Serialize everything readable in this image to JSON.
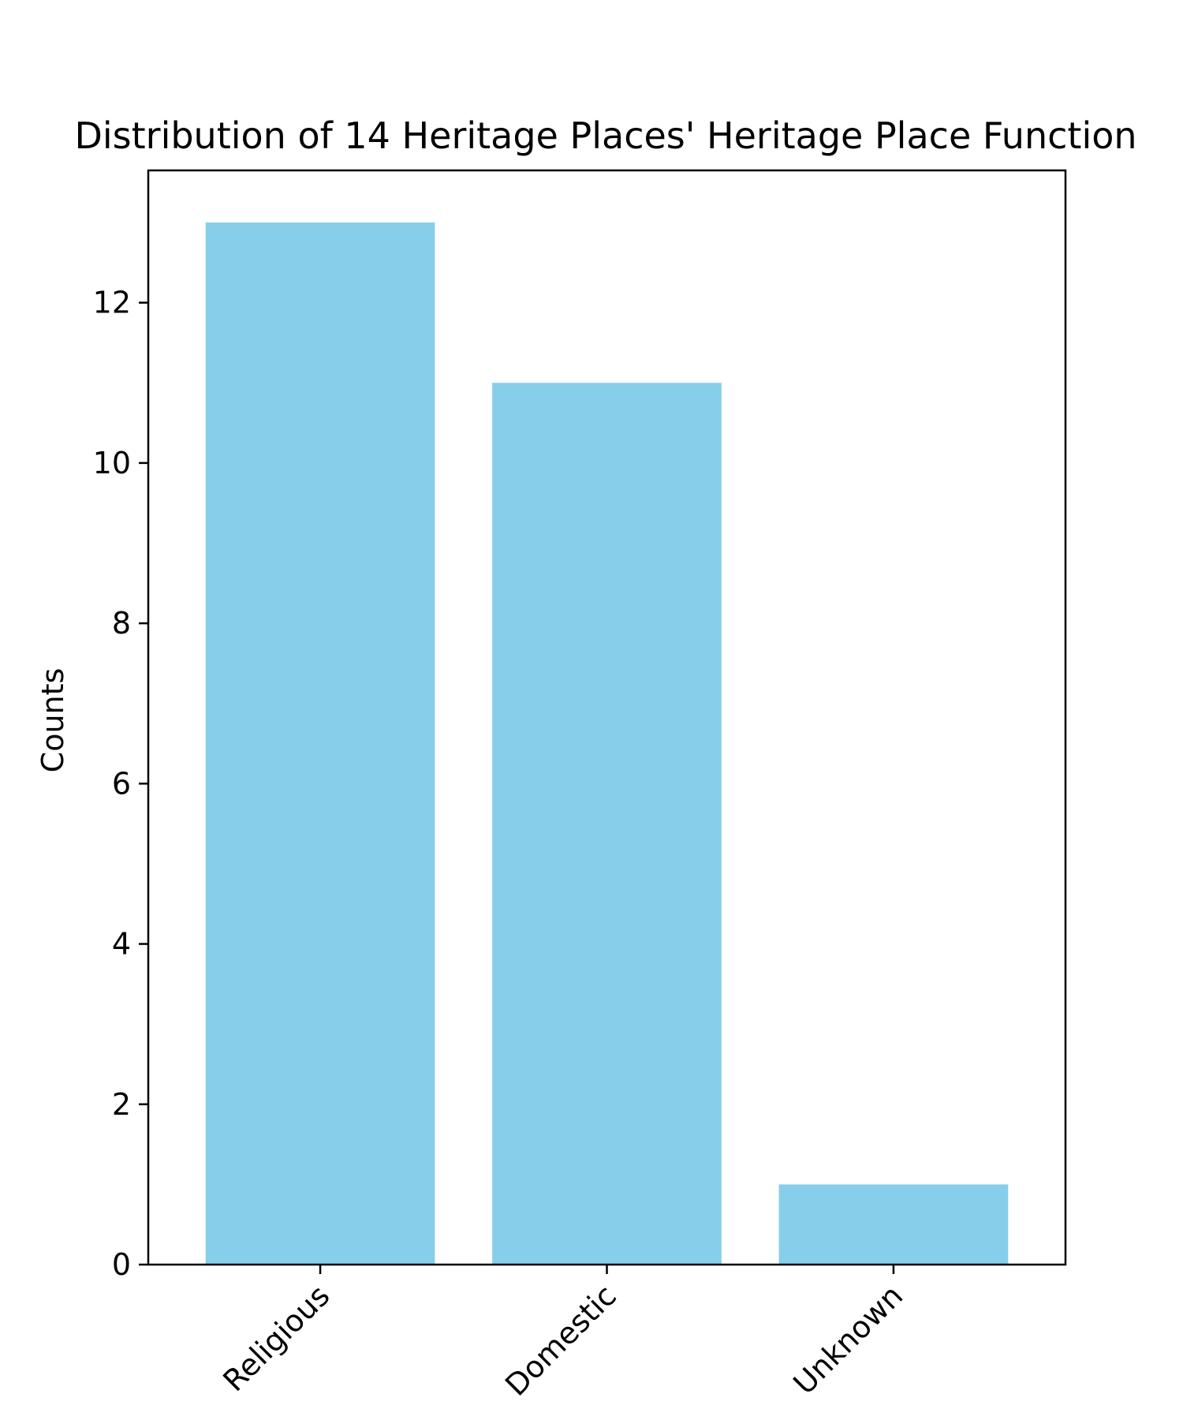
{
  "chart_data": {
    "type": "bar",
    "title": "Distribution of 14 Heritage Places' Heritage Place Function",
    "xlabel": "",
    "ylabel": "Counts",
    "categories": [
      "Religious",
      "Domestic",
      "Unknown"
    ],
    "values": [
      13,
      11,
      1
    ],
    "ylim": [
      0,
      13.65
    ],
    "yticks": [
      0,
      2,
      4,
      6,
      8,
      10,
      12
    ],
    "bar_color": "#87CEEB",
    "grid": false,
    "legend": "none"
  }
}
